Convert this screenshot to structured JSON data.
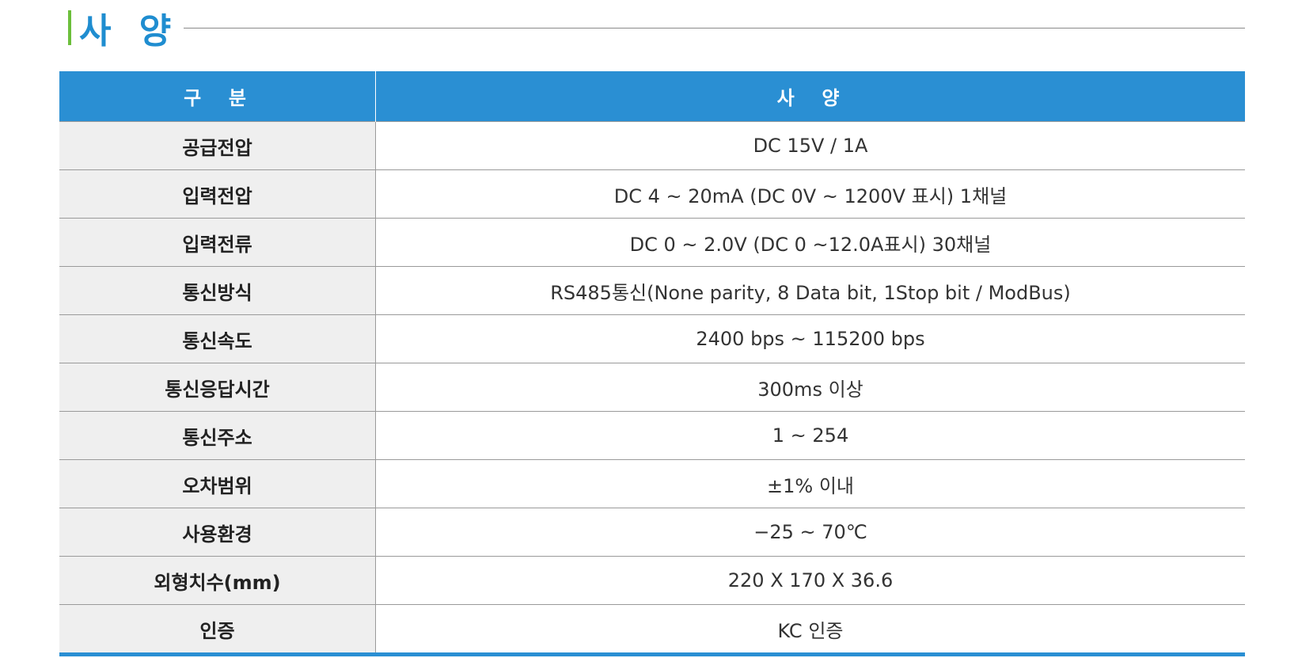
{
  "title": "사 양",
  "table": {
    "header": [
      "구  분",
      "사  양"
    ],
    "rows": [
      [
        "공급전압",
        "DC 15V / 1A"
      ],
      [
        "입력전압",
        "DC 4 ~ 20mA (DC 0V ~ 1200V 표시) 1채널"
      ],
      [
        "입력전류",
        "DC 0 ~ 2.0V (DC 0 ~12.0A표시) 30채널"
      ],
      [
        "통신방식",
        "RS485통신(None parity, 8 Data bit, 1Stop bit / ModBus)"
      ],
      [
        "통신속도",
        "2400 bps ~ 115200 bps"
      ],
      [
        "통신응답시간",
        "300ms 이상"
      ],
      [
        "통신주소",
        "1 ~ 254"
      ],
      [
        "오차범위",
        "±1% 이내"
      ],
      [
        "사용환경",
        "−25 ~ 70℃"
      ],
      [
        "외형치수(mm)",
        "220 X 170 X 36.6"
      ],
      [
        "인증",
        "KC 인증"
      ]
    ]
  }
}
